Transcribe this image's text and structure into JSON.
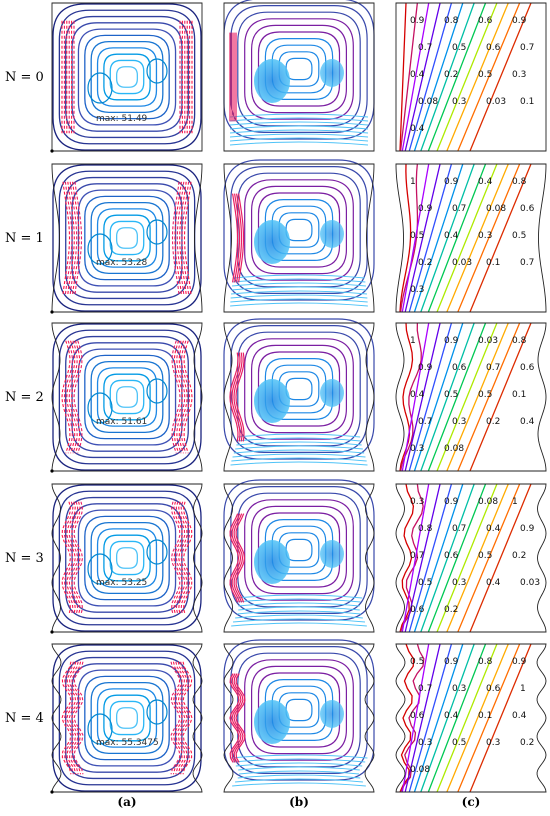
{
  "column_labels": [
    "(a)",
    "(b)",
    "(c)"
  ],
  "rows": [
    {
      "label": "N = 0",
      "undulations": 0,
      "max_label": "max: 51.49",
      "isotherm_labels": [
        "0.9",
        "0.8",
        "0.6",
        "0.9",
        "0.7",
        "0.5",
        "0.6",
        "0.7",
        "0.4",
        "0.2",
        "0.5",
        "0.3",
        "0.08",
        "0.3",
        "0.03",
        "0.1",
        "0.4"
      ]
    },
    {
      "label": "N = 1",
      "undulations": 1,
      "max_label": "max: 53.28",
      "isotherm_labels": [
        "1",
        "0.9",
        "0.4",
        "0.8",
        "0.9",
        "0.7",
        "0.08",
        "0.6",
        "0.5",
        "0.4",
        "0.3",
        "0.5",
        "0.2",
        "0.03",
        "0.1",
        "0.7",
        "0.3"
      ]
    },
    {
      "label": "N = 2",
      "undulations": 2,
      "max_label": "max: 51.61",
      "isotherm_labels": [
        "1",
        "0.9",
        "0.03",
        "0.8",
        "0.9",
        "0.6",
        "0.7",
        "0.6",
        "0.4",
        "0.5",
        "0.5",
        "0.1",
        "0.7",
        "0.3",
        "0.2",
        "0.4",
        "0.3",
        "0.08"
      ]
    },
    {
      "label": "N = 3",
      "undulations": 3,
      "max_label": "max: 53.25",
      "isotherm_labels": [
        "0.3",
        "0.9",
        "0.08",
        "1",
        "0.8",
        "0.7",
        "0.4",
        "0.9",
        "0.7",
        "0.6",
        "0.5",
        "0.2",
        "0.5",
        "0.3",
        "0.4",
        "0.03",
        "0.6",
        "0.2"
      ]
    },
    {
      "label": "N = 4",
      "undulations": 4,
      "max_label": "max: 55.3475",
      "isotherm_labels": [
        "0.5",
        "0.9",
        "0.8",
        "0.9",
        "0.7",
        "0.3",
        "0.6",
        "1",
        "0.6",
        "0.4",
        "0.1",
        "0.4",
        "0.3",
        "0.5",
        "0.3",
        "0.2",
        "0.08"
      ]
    }
  ]
}
